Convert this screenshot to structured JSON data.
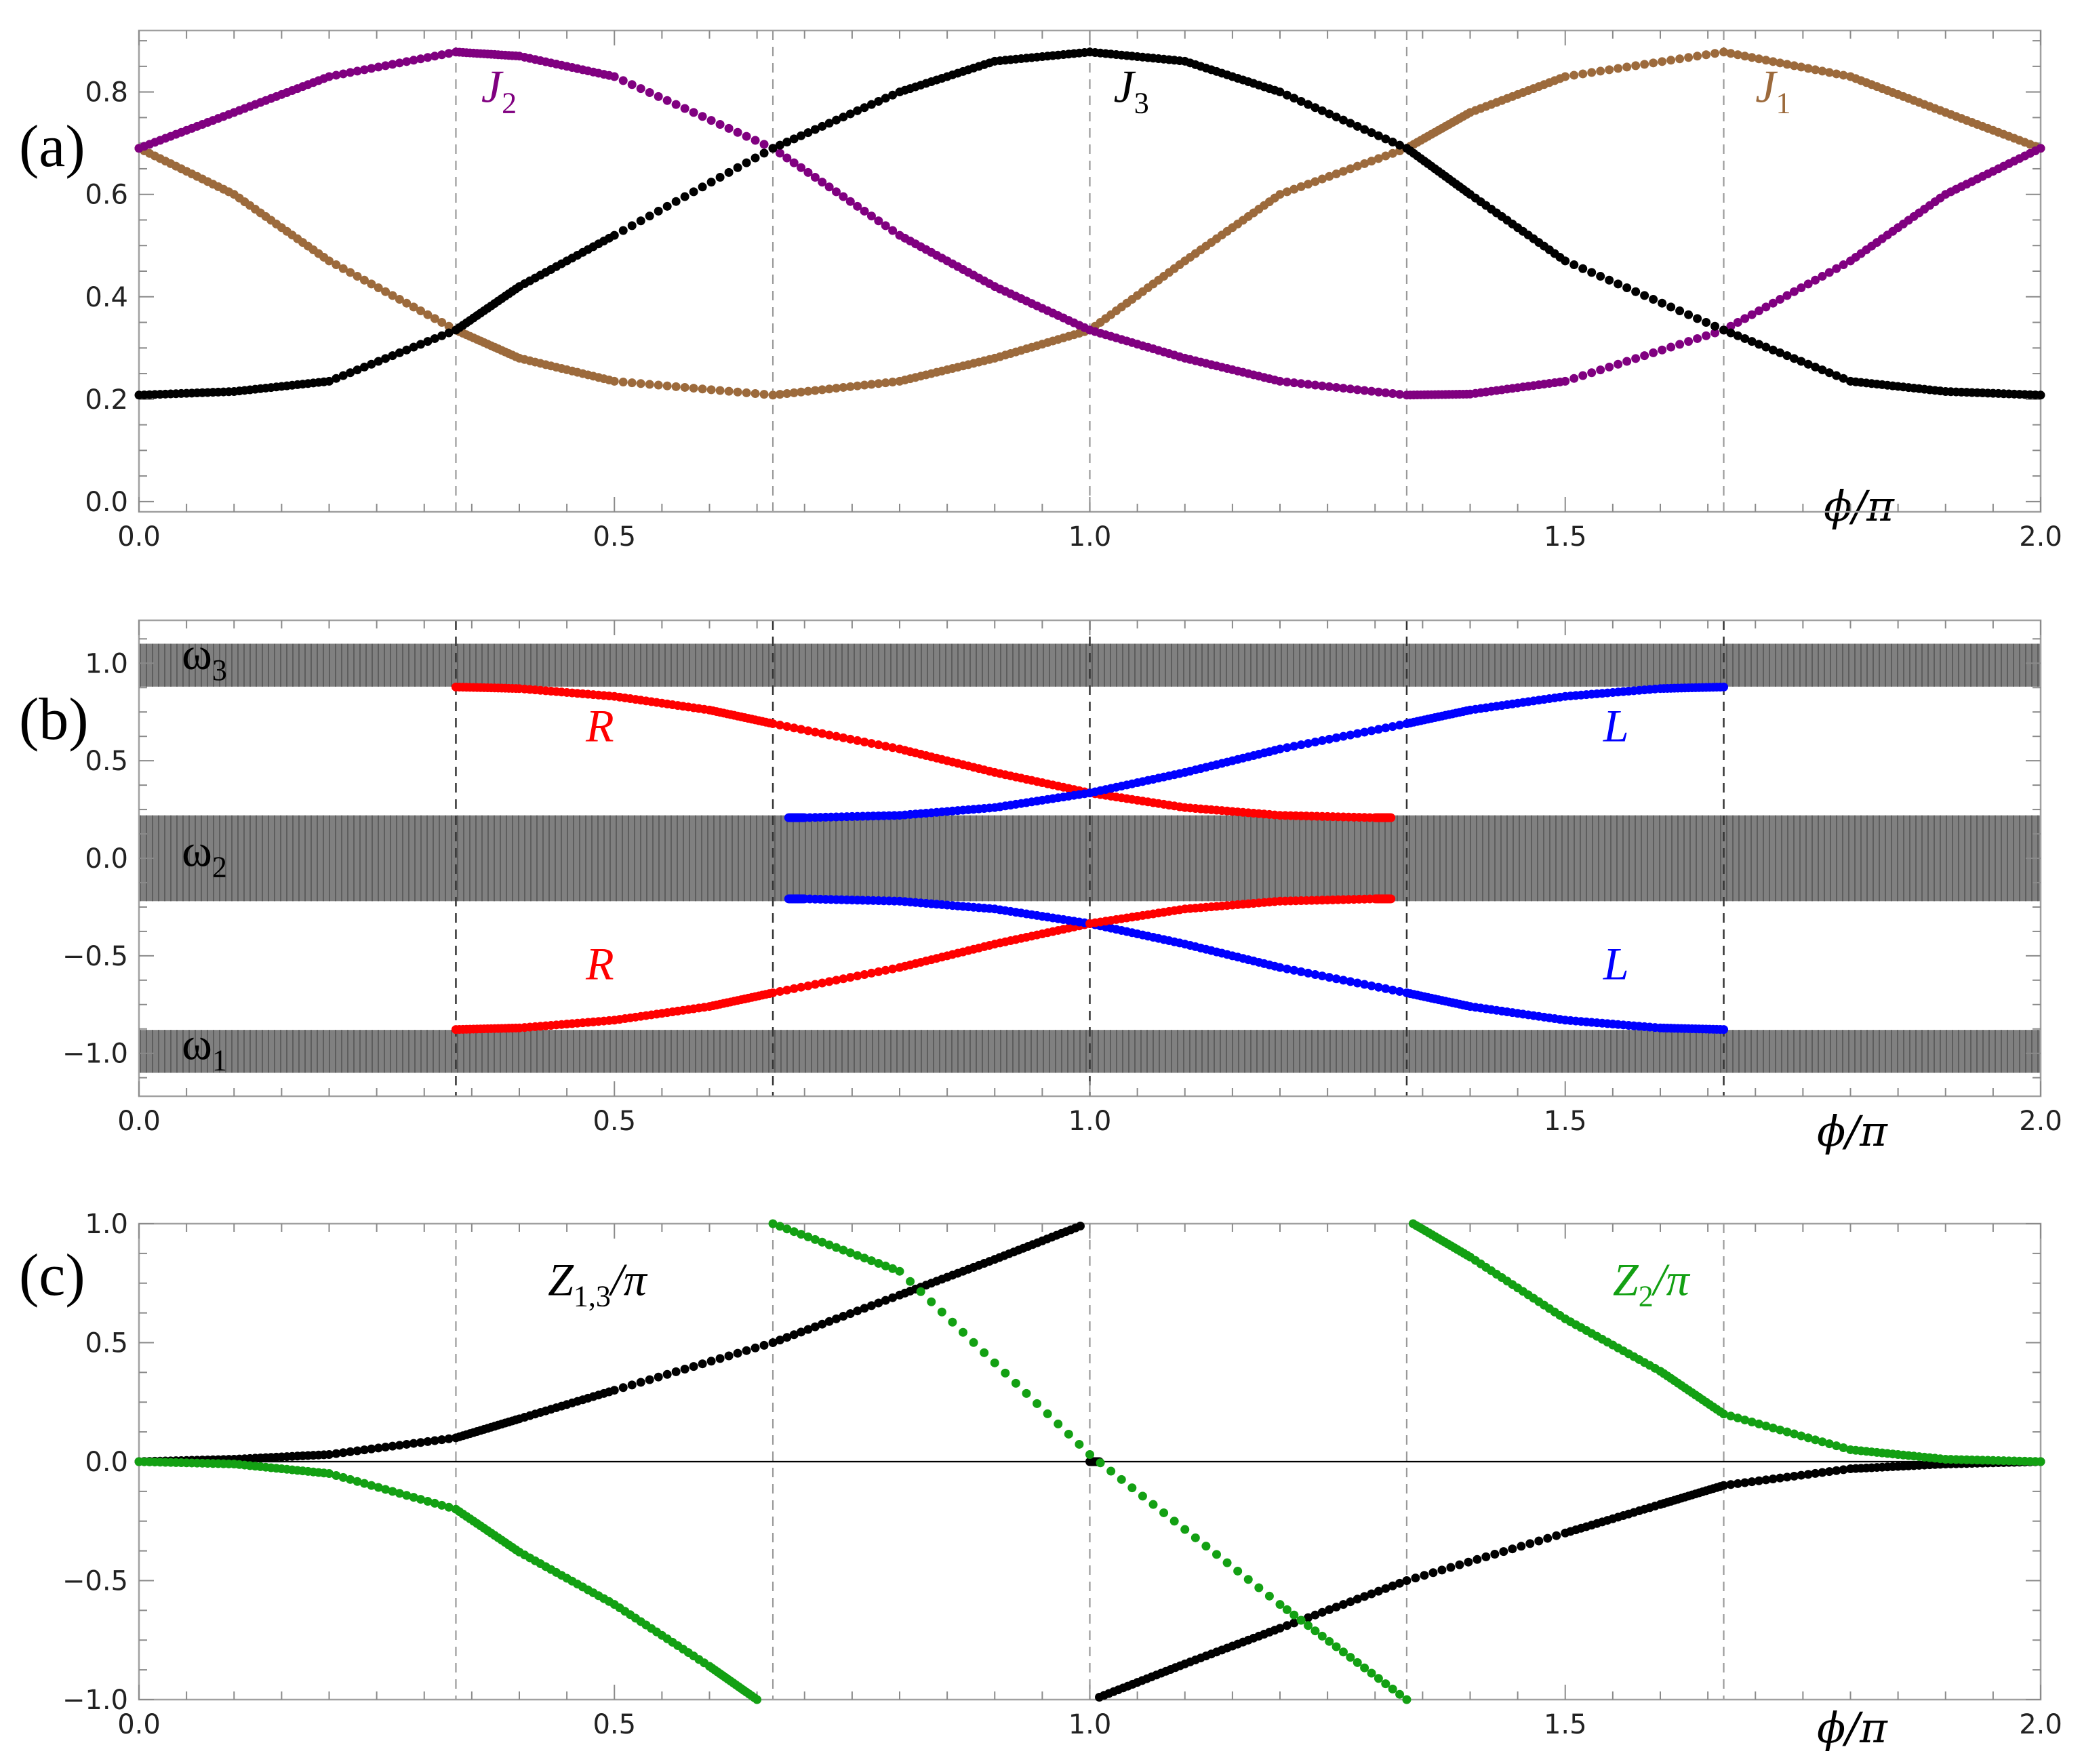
{
  "chart_data": [
    {
      "panel": "(a)",
      "type": "scatter",
      "xlabel": "ϕ/π",
      "ylabel": "",
      "xlim": [
        0,
        2
      ],
      "ylim": [
        -0.02,
        0.92
      ],
      "x_ticks": [
        "0.0",
        "0.5",
        "1.0",
        "1.5",
        "2.0"
      ],
      "y_ticks": [
        "0.0",
        "0.2",
        "0.4",
        "0.6",
        "0.8"
      ],
      "x_tick_values": [
        0,
        0.5,
        1.0,
        1.5,
        2.0
      ],
      "y_tick_values": [
        0,
        0.2,
        0.4,
        0.6,
        0.8
      ],
      "vlines": [
        0.3333,
        0.6667,
        1.0,
        1.3333,
        1.6667
      ],
      "grid": false,
      "series": [
        {
          "name": "J1",
          "color": "#9c6a3c",
          "x": [
            0,
            0.1,
            0.2,
            0.3333,
            0.4,
            0.5,
            0.6667,
            0.8,
            0.9,
            1.0,
            1.1,
            1.2,
            1.3333,
            1.4,
            1.5,
            1.6667,
            1.8,
            1.9,
            2.0
          ],
          "y": [
            0.69,
            0.6,
            0.47,
            0.335,
            0.28,
            0.235,
            0.208,
            0.235,
            0.28,
            0.335,
            0.47,
            0.6,
            0.69,
            0.76,
            0.83,
            0.878,
            0.83,
            0.76,
            0.69
          ]
        },
        {
          "name": "J2",
          "color": "#800080",
          "x": [
            0,
            0.1,
            0.2,
            0.3333,
            0.4,
            0.5,
            0.6667,
            0.8,
            0.9,
            1.0,
            1.1,
            1.2,
            1.3333,
            1.4,
            1.5,
            1.6667,
            1.8,
            1.9,
            2.0
          ],
          "y": [
            0.69,
            0.76,
            0.83,
            0.878,
            0.87,
            0.83,
            0.69,
            0.52,
            0.42,
            0.335,
            0.28,
            0.235,
            0.208,
            0.21,
            0.235,
            0.335,
            0.47,
            0.6,
            0.69
          ]
        },
        {
          "name": "J3",
          "color": "#000000",
          "x": [
            0,
            0.1,
            0.2,
            0.3333,
            0.4,
            0.5,
            0.6667,
            0.8,
            0.9,
            1.0,
            1.1,
            1.2,
            1.3333,
            1.4,
            1.5,
            1.6667,
            1.8,
            1.9,
            2.0
          ],
          "y": [
            0.208,
            0.215,
            0.235,
            0.335,
            0.42,
            0.52,
            0.69,
            0.8,
            0.86,
            0.878,
            0.86,
            0.8,
            0.69,
            0.6,
            0.47,
            0.335,
            0.235,
            0.215,
            0.208
          ]
        }
      ],
      "annotations": [
        {
          "text": "J",
          "sub": "2",
          "x": 0.36,
          "y": 0.78,
          "color": "#800080"
        },
        {
          "text": "J",
          "sub": "3",
          "x": 1.025,
          "y": 0.78,
          "color": "#000000"
        },
        {
          "text": "J",
          "sub": "1",
          "x": 1.7,
          "y": 0.78,
          "color": "#9c6a3c"
        }
      ]
    },
    {
      "panel": "(b)",
      "type": "scatter",
      "xlabel": "ϕ/π",
      "ylabel": "",
      "xlim": [
        0,
        2
      ],
      "ylim": [
        -1.22,
        1.22
      ],
      "x_ticks": [
        "0.0",
        "0.5",
        "1.0",
        "1.5",
        "2.0"
      ],
      "y_ticks": [
        "−1.0",
        "−0.5",
        "0.0",
        "0.5",
        "1.0"
      ],
      "x_tick_values": [
        0,
        0.5,
        1.0,
        1.5,
        2.0
      ],
      "y_tick_values": [
        -1.0,
        -0.5,
        0,
        0.5,
        1.0
      ],
      "vlines": [
        0.3333,
        0.6667,
        1.0,
        1.3333,
        1.6667
      ],
      "grid": false,
      "bands": [
        {
          "name": "ω3",
          "ymin": 0.88,
          "ymax": 1.1,
          "color": "#808080"
        },
        {
          "name": "ω2",
          "ymin": -0.22,
          "ymax": 0.22,
          "color": "#808080"
        },
        {
          "name": "ω1",
          "ymin": -1.1,
          "ymax": -0.88,
          "color": "#808080"
        }
      ],
      "series": [
        {
          "name": "R",
          "color": "#ff0000",
          "x": [
            0.3333,
            0.4,
            0.5,
            0.6,
            0.6667,
            0.8,
            0.9,
            1.0,
            1.1,
            1.2,
            1.3,
            1.3167
          ],
          "y": [
            0.878,
            0.87,
            0.83,
            0.76,
            0.69,
            0.56,
            0.44,
            0.335,
            0.26,
            0.22,
            0.208,
            0.208
          ]
        },
        {
          "name": "L",
          "color": "#0000ff",
          "x": [
            0.6833,
            0.7,
            0.8,
            0.9,
            1.0,
            1.1,
            1.2,
            1.3333,
            1.4,
            1.5,
            1.6,
            1.6667
          ],
          "y": [
            0.208,
            0.208,
            0.22,
            0.26,
            0.335,
            0.44,
            0.56,
            0.69,
            0.76,
            0.83,
            0.87,
            0.878
          ]
        },
        {
          "name": "R",
          "color": "#ff0000",
          "x": [
            0.3333,
            0.4,
            0.5,
            0.6,
            0.6667,
            0.8,
            0.9,
            1.0
          ],
          "y": [
            -0.878,
            -0.87,
            -0.83,
            -0.76,
            -0.69,
            -0.56,
            -0.44,
            -0.335
          ]
        },
        {
          "name": "L",
          "color": "#0000ff",
          "x": [
            0.6833,
            0.7,
            0.8,
            0.9,
            1.0,
            1.1,
            1.2,
            1.3333,
            1.4,
            1.5,
            1.6,
            1.6667
          ],
          "y": [
            -0.208,
            -0.208,
            -0.22,
            -0.26,
            -0.335,
            -0.44,
            -0.56,
            -0.69,
            -0.76,
            -0.83,
            -0.87,
            -0.878
          ]
        },
        {
          "name": "R",
          "color": "#ff0000",
          "x": [
            1.0,
            1.1,
            1.2,
            1.3,
            1.3167
          ],
          "y": [
            -0.335,
            -0.26,
            -0.22,
            -0.208,
            -0.208
          ]
        }
      ],
      "annotations": [
        {
          "text": "R",
          "x": 0.47,
          "y": 0.6,
          "color": "#ff0000"
        },
        {
          "text": "L",
          "x": 1.54,
          "y": 0.6,
          "color": "#0000ff"
        },
        {
          "text": "R",
          "x": 0.47,
          "y": -0.62,
          "color": "#ff0000"
        },
        {
          "text": "L",
          "x": 1.54,
          "y": -0.62,
          "color": "#0000ff"
        },
        {
          "text": "ω",
          "sub": "3",
          "x": 0.045,
          "y": 0.97,
          "color": "#000000"
        },
        {
          "text": "ω",
          "sub": "2",
          "x": 0.045,
          "y": -0.04,
          "color": "#000000"
        },
        {
          "text": "ω",
          "sub": "1",
          "x": 0.045,
          "y": -1.03,
          "color": "#000000"
        }
      ]
    },
    {
      "panel": "(c)",
      "type": "scatter",
      "xlabel": "ϕ/π",
      "ylabel": "",
      "xlim": [
        0,
        2
      ],
      "ylim": [
        -1.0,
        1.0
      ],
      "x_ticks": [
        "0.0",
        "0.5",
        "1.0",
        "1.5",
        "2.0"
      ],
      "y_ticks": [
        "−1.0",
        "−0.5",
        "0.0",
        "0.5",
        "1.0"
      ],
      "x_tick_values": [
        0,
        0.5,
        1.0,
        1.5,
        2.0
      ],
      "y_tick_values": [
        -1.0,
        -0.5,
        0,
        0.5,
        1.0
      ],
      "vlines": [
        0.3333,
        0.6667,
        1.0,
        1.3333,
        1.6667
      ],
      "hline": 0,
      "grid": false,
      "series": [
        {
          "name": "Z1,3/π",
          "color": "#000000",
          "x": [
            0,
            0.1,
            0.2,
            0.3333,
            0.4,
            0.5,
            0.6667,
            0.8,
            0.9,
            0.99
          ],
          "y": [
            0,
            0.01,
            0.03,
            0.1,
            0.18,
            0.3,
            0.5,
            0.7,
            0.85,
            0.99
          ]
        },
        {
          "name": "Z1,3/π",
          "color": "#000000",
          "x": [
            1.0,
            1.01
          ],
          "y": [
            0,
            0
          ]
        },
        {
          "name": "Z1,3/π",
          "color": "#000000",
          "x": [
            1.01,
            1.1,
            1.2,
            1.3333,
            1.5,
            1.6,
            1.6667,
            1.8,
            1.9,
            2.0
          ],
          "y": [
            -0.99,
            -0.85,
            -0.7,
            -0.5,
            -0.3,
            -0.18,
            -0.1,
            -0.03,
            -0.01,
            0
          ]
        },
        {
          "name": "Z2/π",
          "color": "#13a013",
          "x": [
            0,
            0.1,
            0.2,
            0.3333,
            0.4,
            0.5,
            0.6,
            0.65
          ],
          "y": [
            0,
            -0.01,
            -0.05,
            -0.2,
            -0.38,
            -0.6,
            -0.86,
            -1.0
          ]
        },
        {
          "name": "Z2/π",
          "color": "#13a013",
          "x": [
            0.6667,
            0.8,
            1.0,
            1.2,
            1.3333
          ],
          "y": [
            1.0,
            0.8,
            0.03,
            -0.6,
            -1.0
          ]
        },
        {
          "name": "Z2/π",
          "color": "#13a013",
          "x": [
            1.34,
            1.4,
            1.5,
            1.6,
            1.6667,
            1.8,
            1.9,
            2.0
          ],
          "y": [
            1.0,
            0.86,
            0.6,
            0.38,
            0.2,
            0.05,
            0.01,
            0
          ]
        }
      ],
      "annotations": [
        {
          "text": "Z",
          "sub": "1,3",
          "suffix": "/π",
          "x": 0.43,
          "y": 0.7,
          "color": "#000000"
        },
        {
          "text": "Z",
          "sub": "2",
          "suffix": "/π",
          "x": 1.55,
          "y": 0.7,
          "color": "#13a013"
        }
      ]
    }
  ]
}
